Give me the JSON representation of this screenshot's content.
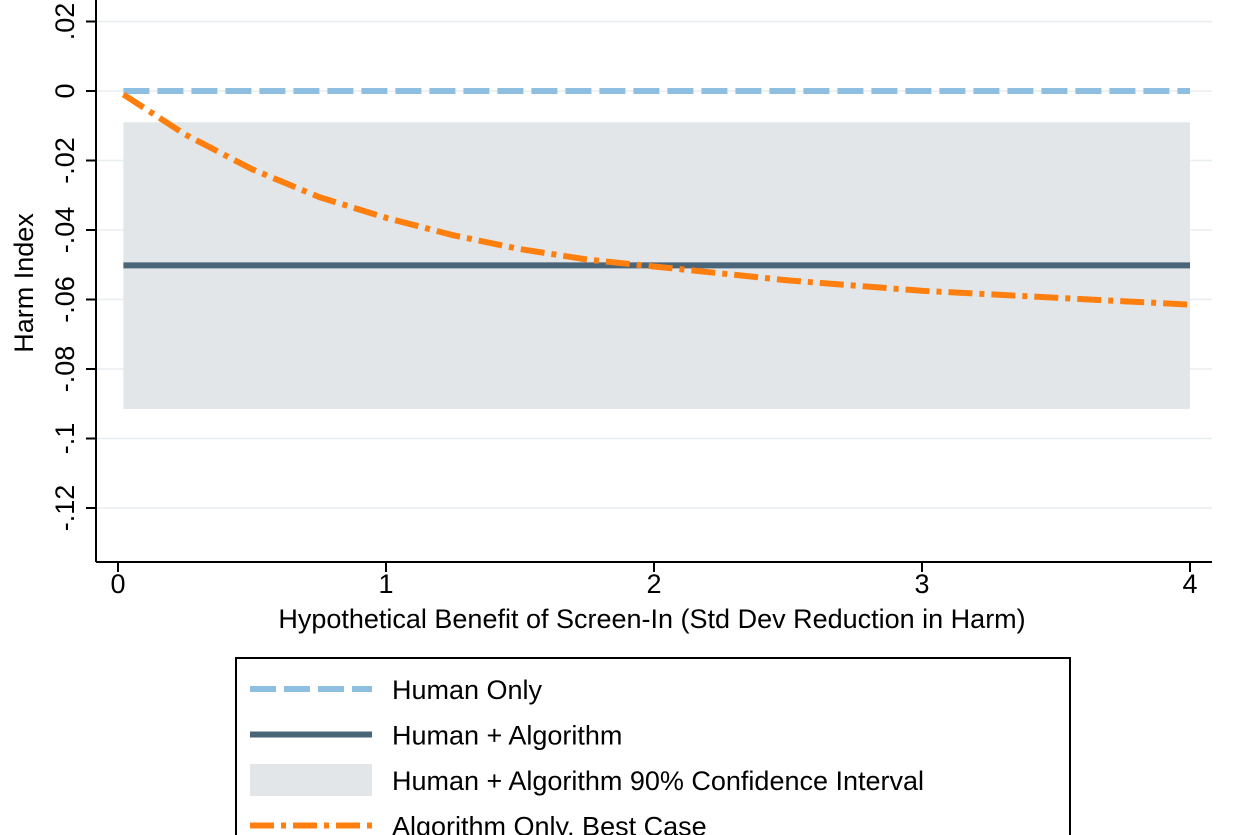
{
  "chart_data": {
    "type": "line",
    "title": "",
    "xlabel": "Hypothetical Benefit of Screen-In (Std Dev Reduction in Harm)",
    "ylabel": "Harm Index",
    "xlim": [
      0,
      4
    ],
    "ylim": [
      -0.137,
      0.02
    ],
    "x_ticks": [
      0,
      1,
      2,
      3,
      4
    ],
    "x_tick_labels": [
      "0",
      "1",
      "2",
      "3",
      "4"
    ],
    "y_ticks": [
      0.02,
      0,
      -0.02,
      -0.04,
      -0.06,
      -0.08,
      -0.1,
      -0.12
    ],
    "y_tick_labels": [
      ".02",
      "0",
      "-.02",
      "-.04",
      "-.06",
      "-.08",
      "-.1",
      "-.12"
    ],
    "grid": true,
    "legend_position": "bottom",
    "colors": {
      "human_only": "#8fbfe0",
      "human_algorithm": "#4a6478",
      "confidence_band": "#e2e6e9",
      "algorithm_only": "#ff7f0e"
    },
    "band": {
      "name": "Human + Algorithm 90% Confidence Interval",
      "x": [
        0.02,
        4
      ],
      "lower": -0.0915,
      "upper": -0.009
    },
    "series": [
      {
        "name": "Human Only",
        "style": "dashed",
        "x": [
          0.02,
          4
        ],
        "values": [
          0,
          0
        ]
      },
      {
        "name": "Human + Algorithm",
        "style": "solid",
        "x": [
          0.02,
          4
        ],
        "values": [
          -0.0502,
          -0.0502
        ]
      },
      {
        "name": "Algorithm Only, Best Case",
        "style": "dash-dot",
        "x": [
          0.02,
          0.25,
          0.5,
          0.75,
          1.0,
          1.25,
          1.5,
          1.75,
          2.0,
          2.25,
          2.5,
          2.75,
          3.0,
          3.25,
          3.5,
          3.75,
          4.0
        ],
        "values": [
          -0.001,
          -0.0125,
          -0.0225,
          -0.0305,
          -0.0365,
          -0.0415,
          -0.0455,
          -0.0485,
          -0.0505,
          -0.0525,
          -0.0545,
          -0.056,
          -0.0575,
          -0.0585,
          -0.0595,
          -0.0605,
          -0.0615
        ]
      }
    ]
  }
}
